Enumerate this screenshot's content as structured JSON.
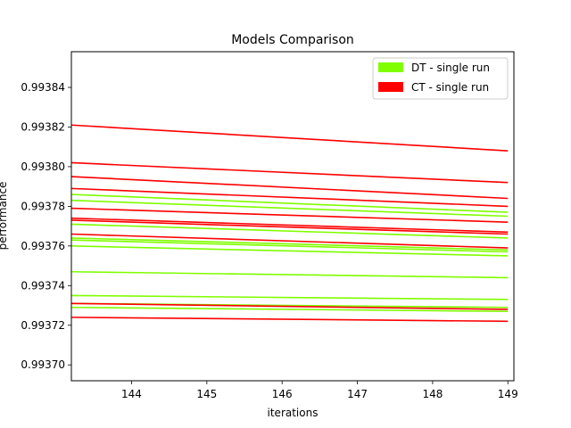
{
  "chart_data": {
    "type": "line",
    "title": "Models Comparison",
    "xlabel": "iterations",
    "ylabel": "performance",
    "xlim": [
      143.2,
      149.08
    ],
    "ylim": [
      0.993692,
      0.993858
    ],
    "xticks": [
      144,
      145,
      146,
      147,
      148,
      149
    ],
    "xtick_labels": [
      "144",
      "145",
      "146",
      "147",
      "148",
      "149"
    ],
    "yticks": [
      0.9937,
      0.99372,
      0.99374,
      0.99376,
      0.99378,
      0.9938,
      0.99382,
      0.99384
    ],
    "ytick_labels": [
      "0.99370",
      "0.99372",
      "0.99374",
      "0.99376",
      "0.99378",
      "0.99380",
      "0.99382",
      "0.99384"
    ],
    "grid": false,
    "legend_position": "top-right",
    "legend": [
      {
        "label": "DT - single run",
        "color": "#7fff00"
      },
      {
        "label": "CT - single run",
        "color": "#ff0000"
      }
    ],
    "series": [
      {
        "name": "DT - single run",
        "color": "#7fff00",
        "x": [
          143.2,
          149
        ],
        "y": [
          0.993786,
          0.993777
        ]
      },
      {
        "name": "DT - single run",
        "color": "#7fff00",
        "x": [
          143.2,
          149
        ],
        "y": [
          0.993783,
          0.993775
        ]
      },
      {
        "name": "DT - single run",
        "color": "#7fff00",
        "x": [
          143.2,
          149
        ],
        "y": [
          0.993771,
          0.993764
        ]
      },
      {
        "name": "DT - single run",
        "color": "#7fff00",
        "x": [
          143.2,
          149
        ],
        "y": [
          0.993764,
          0.993758
        ]
      },
      {
        "name": "DT - single run",
        "color": "#7fff00",
        "x": [
          143.2,
          149
        ],
        "y": [
          0.993763,
          0.993757
        ]
      },
      {
        "name": "DT - single run",
        "color": "#7fff00",
        "x": [
          143.2,
          149
        ],
        "y": [
          0.99376,
          0.993755
        ]
      },
      {
        "name": "DT - single run",
        "color": "#7fff00",
        "x": [
          143.2,
          149
        ],
        "y": [
          0.993747,
          0.993744
        ]
      },
      {
        "name": "DT - single run",
        "color": "#7fff00",
        "x": [
          143.2,
          149
        ],
        "y": [
          0.993735,
          0.993733
        ]
      },
      {
        "name": "DT - single run",
        "color": "#7fff00",
        "x": [
          143.2,
          149
        ],
        "y": [
          0.993731,
          0.993729
        ]
      },
      {
        "name": "DT - single run",
        "color": "#7fff00",
        "x": [
          143.2,
          149
        ],
        "y": [
          0.993729,
          0.993727
        ]
      },
      {
        "name": "CT - single run",
        "color": "#ff0000",
        "x": [
          143.2,
          149
        ],
        "y": [
          0.993821,
          0.993808
        ]
      },
      {
        "name": "CT - single run",
        "color": "#ff0000",
        "x": [
          143.2,
          149
        ],
        "y": [
          0.993802,
          0.993792
        ]
      },
      {
        "name": "CT - single run",
        "color": "#ff0000",
        "x": [
          143.2,
          149
        ],
        "y": [
          0.993795,
          0.993784
        ]
      },
      {
        "name": "CT - single run",
        "color": "#ff0000",
        "x": [
          143.2,
          149
        ],
        "y": [
          0.993789,
          0.99378
        ]
      },
      {
        "name": "CT - single run",
        "color": "#ff0000",
        "x": [
          143.2,
          149
        ],
        "y": [
          0.993779,
          0.993772
        ]
      },
      {
        "name": "CT - single run",
        "color": "#ff0000",
        "x": [
          143.2,
          149
        ],
        "y": [
          0.993774,
          0.993767
        ]
      },
      {
        "name": "CT - single run",
        "color": "#ff0000",
        "x": [
          143.2,
          149
        ],
        "y": [
          0.993773,
          0.993766
        ]
      },
      {
        "name": "CT - single run",
        "color": "#ff0000",
        "x": [
          143.2,
          149
        ],
        "y": [
          0.993766,
          0.993759
        ]
      },
      {
        "name": "CT - single run",
        "color": "#ff0000",
        "x": [
          143.2,
          149
        ],
        "y": [
          0.993731,
          0.993728
        ]
      },
      {
        "name": "CT - single run",
        "color": "#ff0000",
        "x": [
          143.2,
          149
        ],
        "y": [
          0.993724,
          0.993722
        ]
      }
    ]
  }
}
